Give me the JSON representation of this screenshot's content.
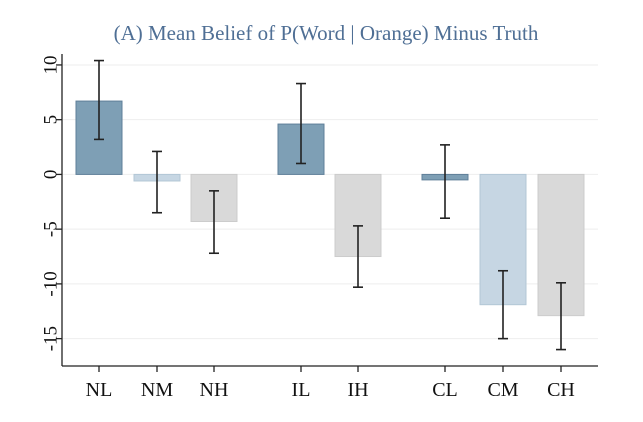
{
  "colors": {
    "background": "#ffffff",
    "title": "#4f6f95",
    "dark_blue_fill": "#7e9fb5",
    "dark_blue_edge": "#5f7f99",
    "light_blue_fill": "#c6d6e3",
    "light_blue_edge": "#b3c7d6",
    "gray_fill": "#d9d9d9",
    "gray_edge": "#cccccc",
    "grid": "#eeeeee",
    "axis": "#222222",
    "error_bar": "#222222"
  },
  "chart_data": {
    "type": "bar",
    "title": "(A) Mean Belief of P(Word | Orange) Minus Truth",
    "xlabel": "",
    "ylabel": "",
    "ylim": [
      -17.5,
      11
    ],
    "yticks": [
      10,
      5,
      0,
      -5,
      -10,
      -15
    ],
    "ytick_labels": [
      "10",
      "5",
      "0",
      "-5",
      "-10",
      "-15"
    ],
    "grid": true,
    "legend": "none",
    "groups": [
      [
        "NL",
        "NM",
        "NH"
      ],
      [
        "IL",
        "IH"
      ],
      [
        "CL",
        "CM",
        "CH"
      ]
    ],
    "categories": [
      "NL",
      "NM",
      "NH",
      "IL",
      "IH",
      "CL",
      "CM",
      "CH"
    ],
    "values": [
      6.7,
      -0.6,
      -4.3,
      4.6,
      -7.5,
      -0.5,
      -11.9,
      -12.9
    ],
    "ci_low": [
      3.2,
      -3.5,
      -7.2,
      1.0,
      -10.3,
      -4.0,
      -15.0,
      -16.0
    ],
    "ci_high": [
      10.4,
      2.1,
      -1.5,
      8.3,
      -4.7,
      2.7,
      -8.8,
      -9.9
    ],
    "bar_style": [
      "dark_blue",
      "light_blue",
      "gray",
      "dark_blue",
      "gray",
      "dark_blue",
      "light_blue",
      "gray"
    ]
  }
}
